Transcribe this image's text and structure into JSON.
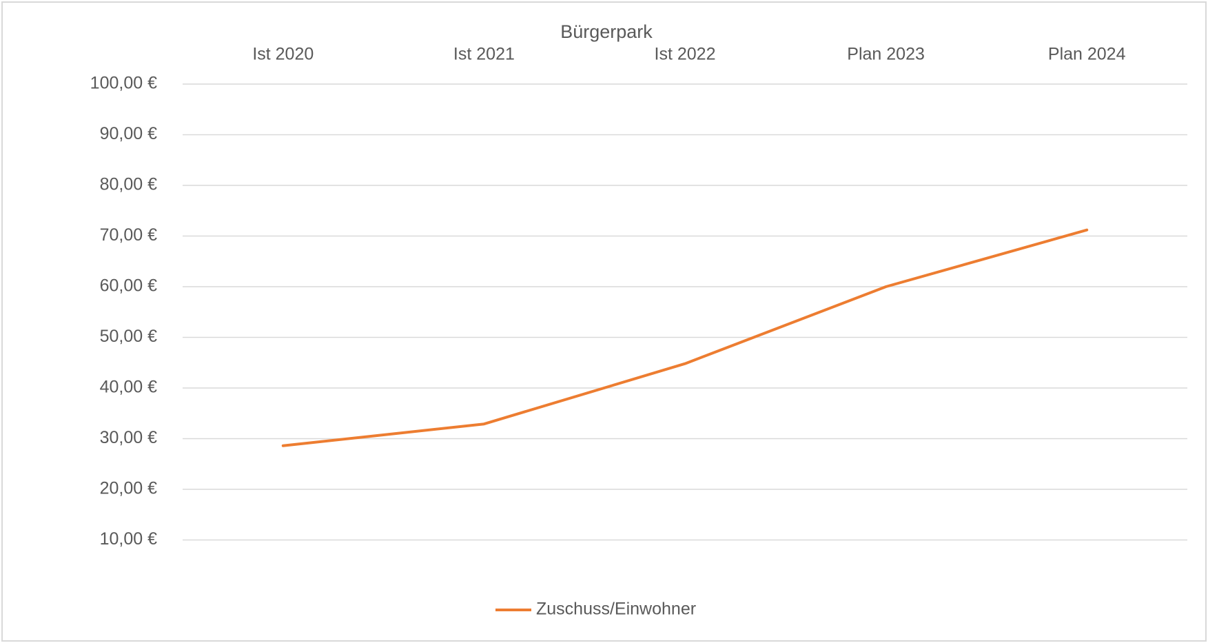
{
  "chart_data": {
    "type": "line",
    "title": "Bürgerpark",
    "categories": [
      "Ist 2020",
      "Ist 2021",
      "Ist 2022",
      "Plan 2023",
      "Plan 2024"
    ],
    "series": [
      {
        "name": "Zuschuss/Einwohner",
        "color": "#ed7d31",
        "values": [
          28.6,
          32.9,
          44.8,
          60.0,
          71.2
        ]
      }
    ],
    "ylim": [
      0,
      100
    ],
    "yticks": [
      {
        "value": 10,
        "label": "10,00 €"
      },
      {
        "value": 20,
        "label": "20,00 €"
      },
      {
        "value": 30,
        "label": "30,00 €"
      },
      {
        "value": 40,
        "label": "40,00 €"
      },
      {
        "value": 50,
        "label": "50,00 €"
      },
      {
        "value": 60,
        "label": "60,00 €"
      },
      {
        "value": 70,
        "label": "70,00 €"
      },
      {
        "value": 80,
        "label": "80,00 €"
      },
      {
        "value": 90,
        "label": "90,00 €"
      },
      {
        "value": 100,
        "label": "100,00 €"
      }
    ],
    "grid": true,
    "legend": "bottom"
  }
}
